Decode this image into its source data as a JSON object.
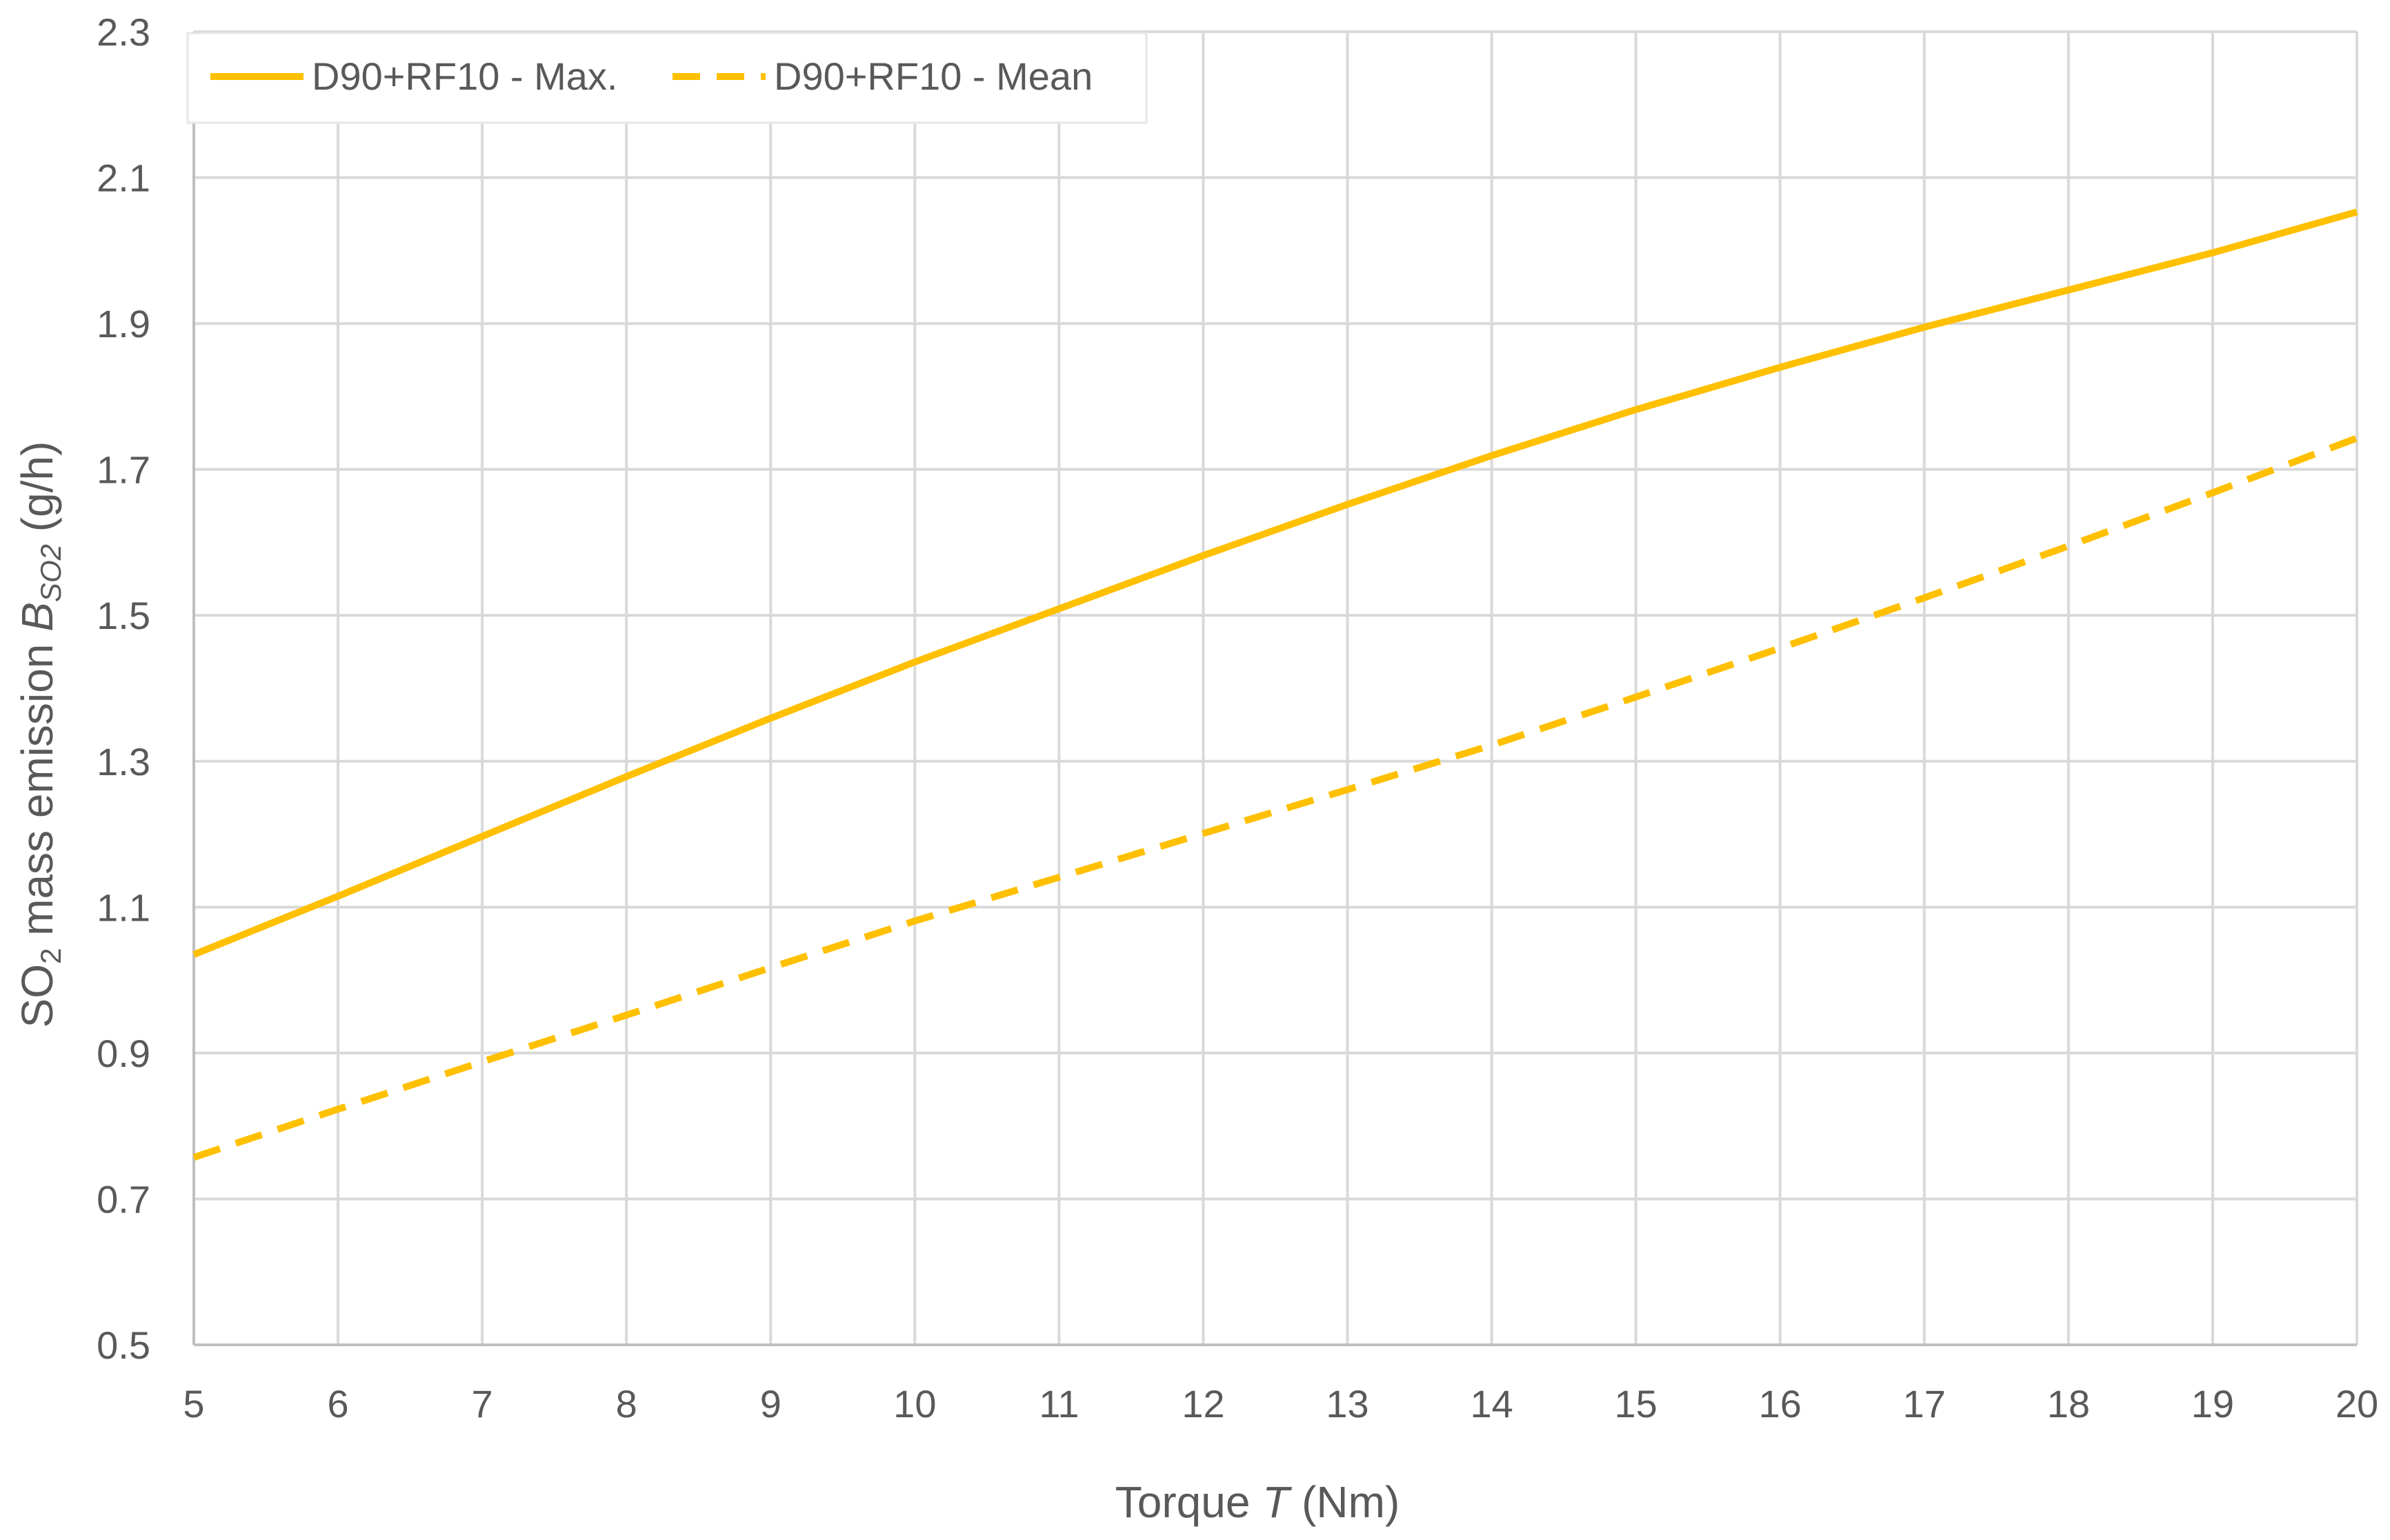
{
  "chart_data": {
    "type": "line",
    "xlabel": {
      "prefix": "Torque ",
      "symbol": "T",
      "suffix": " (Nm)"
    },
    "ylabel": {
      "prefix": "SO",
      "prefix_sub": "2",
      "middle": " mass emission ",
      "symbol": "B",
      "symbol_sub": "SO2",
      "suffix": "  (g/h)"
    },
    "xlim": [
      5,
      20
    ],
    "ylim": [
      0.5,
      2.3
    ],
    "x_ticks": [
      "5",
      "6",
      "7",
      "8",
      "9",
      "10",
      "11",
      "12",
      "13",
      "14",
      "15",
      "16",
      "17",
      "18",
      "19",
      "20"
    ],
    "y_ticks": [
      "0.5",
      "0.7",
      "0.9",
      "1.1",
      "1.3",
      "1.5",
      "1.7",
      "1.9",
      "2.1",
      "2.3"
    ],
    "grid": true,
    "legend_position": "top-left",
    "x": [
      5,
      6,
      7,
      8,
      9,
      10,
      11,
      12,
      13,
      14,
      15,
      16,
      17,
      18,
      19,
      20
    ],
    "series": [
      {
        "name": "D90+RF10 - Max.",
        "style": "solid",
        "color": "#ffc000",
        "values": [
          1.035,
          1.115,
          1.197,
          1.279,
          1.359,
          1.436,
          1.509,
          1.582,
          1.652,
          1.719,
          1.782,
          1.84,
          1.895,
          1.946,
          1.997,
          2.053
        ]
      },
      {
        "name": "D90+RF10 - Mean",
        "style": "dashed",
        "color": "#ffc000",
        "values": [
          0.757,
          0.823,
          0.888,
          0.952,
          1.017,
          1.081,
          1.141,
          1.201,
          1.261,
          1.322,
          1.388,
          1.455,
          1.524,
          1.595,
          1.668,
          1.743
        ]
      }
    ]
  }
}
